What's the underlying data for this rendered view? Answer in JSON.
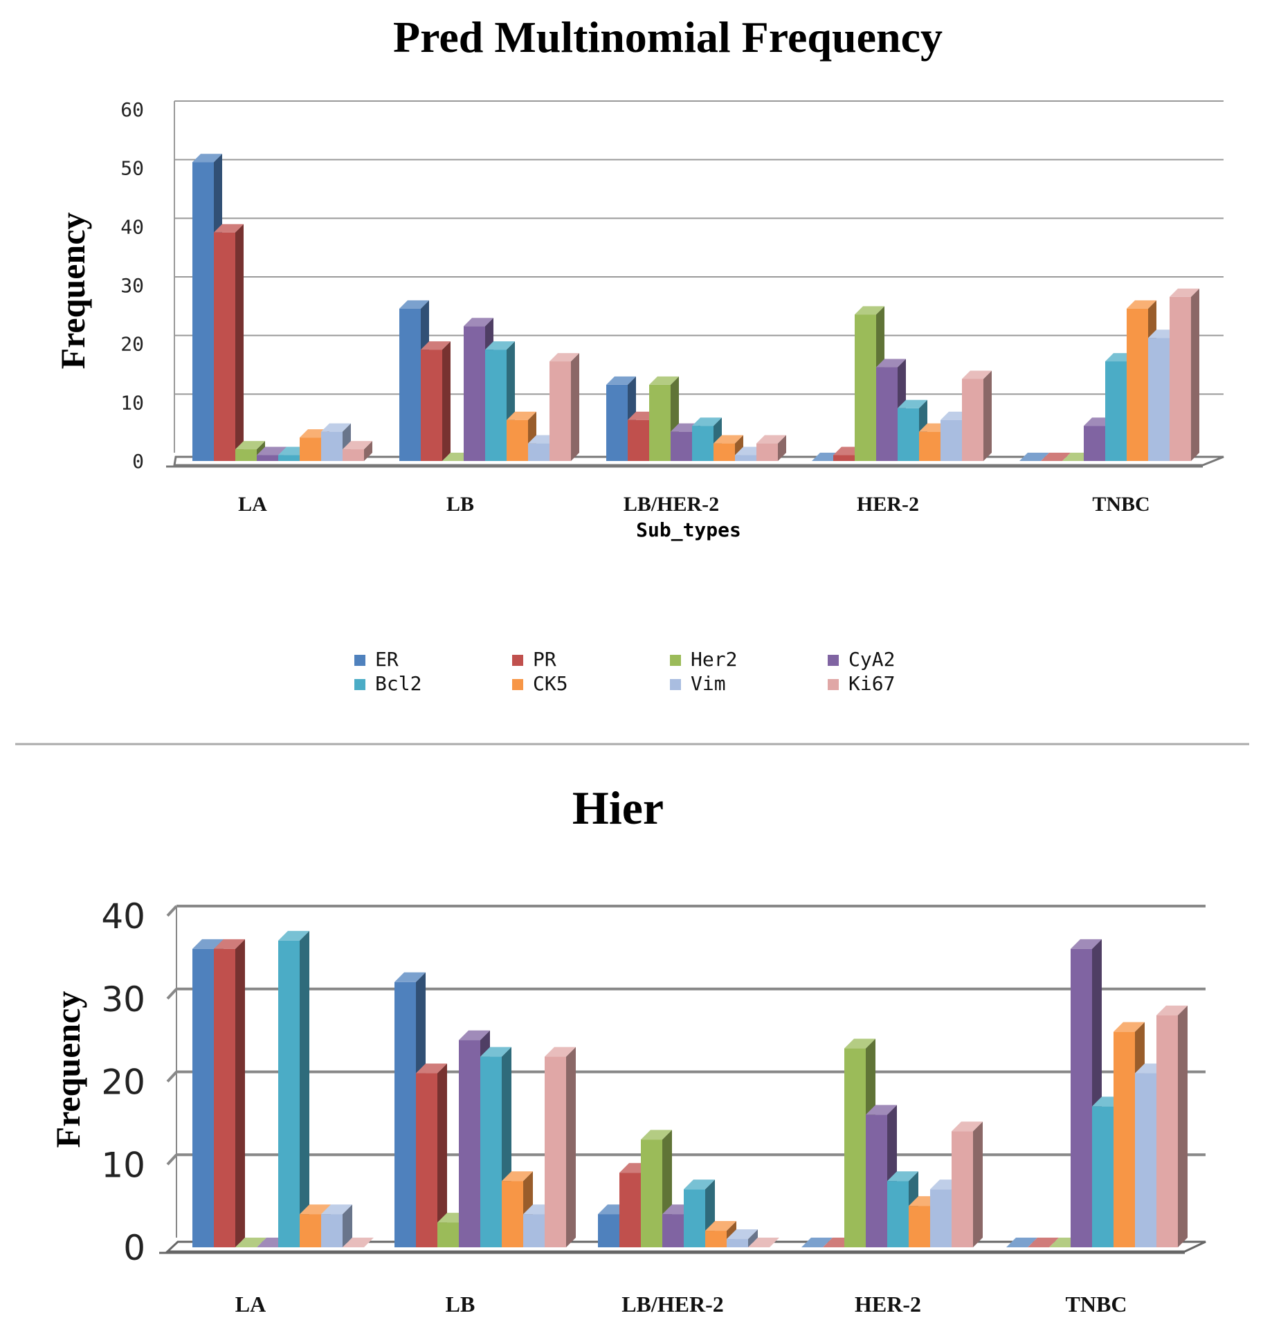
{
  "colors": {
    "ER": "#4f81bd",
    "PR": "#c0504d",
    "Her2": "#9bbb59",
    "CyA2": "#8064a2",
    "Bcl2": "#4bacc6",
    "CK5": "#f79646",
    "Vim": "#a9bde0",
    "Ki67": "#e0a7a6"
  },
  "chart_data": [
    {
      "type": "bar",
      "title": "Pred Multinomial Frequency",
      "xlabel": "Sub_types",
      "ylabel": "Frequency",
      "ylim": [
        0,
        60
      ],
      "yticks": [
        "0",
        "10",
        "20",
        "30",
        "40",
        "50",
        "60"
      ],
      "grid": true,
      "legend_position": "bottom",
      "categories": [
        "LA",
        "LB",
        "LB/HER-2",
        "HER-2",
        "TNBC"
      ],
      "series": [
        {
          "name": "ER",
          "values": [
            51,
            26,
            13,
            0,
            0
          ]
        },
        {
          "name": "PR",
          "values": [
            39,
            19,
            7,
            1,
            0
          ]
        },
        {
          "name": "Her2",
          "values": [
            2,
            0,
            13,
            25,
            0
          ]
        },
        {
          "name": "CyA2",
          "values": [
            1,
            23,
            5,
            16,
            6
          ]
        },
        {
          "name": "Bcl2",
          "values": [
            1,
            19,
            6,
            9,
            17
          ]
        },
        {
          "name": "CK5",
          "values": [
            4,
            7,
            3,
            5,
            26
          ]
        },
        {
          "name": "Vim",
          "values": [
            5,
            3,
            1,
            7,
            21
          ]
        },
        {
          "name": "Ki67",
          "values": [
            2,
            17,
            3,
            14,
            28
          ]
        }
      ]
    },
    {
      "type": "bar",
      "title": "Hier",
      "xlabel": "",
      "ylabel": "Frequency",
      "ylim": [
        0,
        40
      ],
      "yticks": [
        "0",
        "10",
        "20",
        "30",
        "40"
      ],
      "grid": true,
      "categories": [
        "LA",
        "LB",
        "LB/HER-2",
        "HER-2",
        "TNBC"
      ],
      "series": [
        {
          "name": "ER",
          "values": [
            36,
            32,
            4,
            0,
            0
          ]
        },
        {
          "name": "PR",
          "values": [
            36,
            21,
            9,
            0,
            0
          ]
        },
        {
          "name": "Her2",
          "values": [
            0,
            3,
            13,
            24,
            0
          ]
        },
        {
          "name": "CyA2",
          "values": [
            0,
            25,
            4,
            16,
            36
          ]
        },
        {
          "name": "Bcl2",
          "values": [
            37,
            23,
            7,
            8,
            17
          ]
        },
        {
          "name": "CK5",
          "values": [
            4,
            8,
            2,
            5,
            26
          ]
        },
        {
          "name": "Vim",
          "values": [
            4,
            4,
            1,
            7,
            21
          ]
        },
        {
          "name": "Ki67",
          "values": [
            0,
            23,
            0,
            14,
            28
          ]
        }
      ]
    }
  ]
}
